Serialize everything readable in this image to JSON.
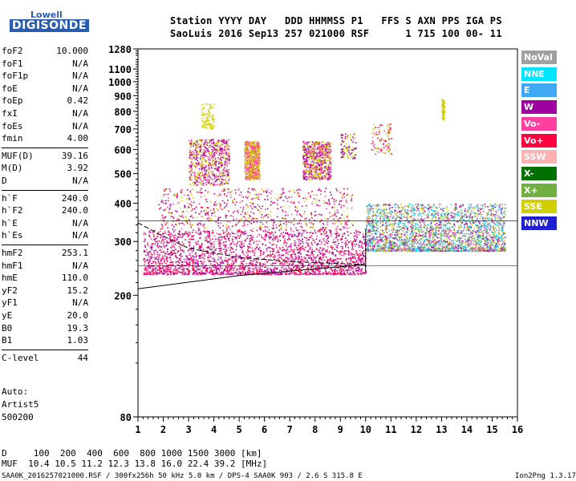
{
  "logo": {
    "brand": "Lowell",
    "name": "DIGISONDE"
  },
  "header": {
    "line1": "Station YYYY DAY   DDD HHMMSS P1   FFS S AXN PPS IGA PS",
    "line2": "SaoLuis 2016 Sep13 257 021000 RSF      1 715 100 00- 11"
  },
  "params": [
    {
      "name": "foF2",
      "value": "10.000"
    },
    {
      "name": "foF1",
      "value": "N/A"
    },
    {
      "name": "foF1p",
      "value": "N/A"
    },
    {
      "name": "foE",
      "value": "N/A"
    },
    {
      "name": "foEp",
      "value": "0.42"
    },
    {
      "name": "fxI",
      "value": "N/A"
    },
    {
      "name": "foEs",
      "value": "N/A"
    },
    {
      "name": "fmin",
      "value": "4.00"
    },
    {
      "name": "MUF(D)",
      "value": "39.16"
    },
    {
      "name": "M(D)",
      "value": "3.92"
    },
    {
      "name": "D",
      "value": "N/A"
    },
    {
      "name": "h`F",
      "value": "240.0"
    },
    {
      "name": "h`F2",
      "value": "240.0"
    },
    {
      "name": "h`E",
      "value": "N/A"
    },
    {
      "name": "h`Es",
      "value": "N/A"
    },
    {
      "name": "hmF2",
      "value": "253.1"
    },
    {
      "name": "hmF1",
      "value": "N/A"
    },
    {
      "name": "hmE",
      "value": "110.0"
    },
    {
      "name": "yF2",
      "value": "15.2"
    },
    {
      "name": "yF1",
      "value": "N/A"
    },
    {
      "name": "yE",
      "value": "20.0"
    },
    {
      "name": "B0",
      "value": "19.3"
    },
    {
      "name": "B1",
      "value": "1.03"
    },
    {
      "name": "C-level",
      "value": "44"
    }
  ],
  "auto": {
    "line1": "Auto:",
    "line2": "Artist5",
    "line3": "500200"
  },
  "legend": [
    {
      "label": "NoVal",
      "color": "#a0a0a0"
    },
    {
      "label": "NNE",
      "color": "#00e5ff"
    },
    {
      "label": "E",
      "color": "#3fa9f5"
    },
    {
      "label": "W",
      "color": "#a000a0"
    },
    {
      "label": "Vo-",
      "color": "#ff40a0"
    },
    {
      "label": "Vo+",
      "color": "#ff0040"
    },
    {
      "label": "SSW",
      "color": "#ffb0b0"
    },
    {
      "label": "X-",
      "color": "#007000"
    },
    {
      "label": "X+",
      "color": "#70b040"
    },
    {
      "label": "SSE",
      "color": "#d0d000"
    },
    {
      "label": "NNW",
      "color": "#2020d0"
    }
  ],
  "footer": {
    "distances": "D     100  200  400  600  800 1000 1500 3000 [km]",
    "muf": "MUF  10.4 10.5 11.2 12.3 13.8 16.0 22.4 39.2 [MHz]",
    "file_info": "SAA0K_2016257021000.RSF / 300fx256h 50 kHz 5.0 km / DPS-4 SAA0K 903 / 2.6 S 315.8 E",
    "version": "Ion2Png 1.3.17"
  },
  "chart_data": {
    "type": "scatter",
    "xlabel": "",
    "ylabel": "",
    "xlim": [
      1,
      16
    ],
    "ylim": [
      80,
      1280
    ],
    "y_scale": "log",
    "x_ticks": [
      1,
      2,
      3,
      4,
      5,
      6,
      7,
      8,
      9,
      10,
      11,
      12,
      13,
      14,
      15,
      16
    ],
    "y_ticks": [
      80,
      200,
      300,
      400,
      500,
      600,
      700,
      800,
      900,
      1000,
      1100,
      1280
    ],
    "grid": false,
    "horizontal_lines": [
      250,
      350
    ],
    "vertical_line": 10.0,
    "legend_position": "right",
    "trace_lines": [
      {
        "points": [
          [
            1,
            210
          ],
          [
            5,
            232
          ],
          [
            10,
            252
          ]
        ]
      },
      {
        "points": [
          [
            1,
            345
          ],
          [
            1.8,
            318
          ],
          [
            3,
            285
          ],
          [
            5,
            266
          ],
          [
            7,
            258
          ],
          [
            9,
            254
          ],
          [
            10,
            252
          ]
        ]
      }
    ],
    "echo_clusters": [
      {
        "x_range": [
          1.2,
          10.0
        ],
        "y_range": [
          235,
          330
        ],
        "density": "high",
        "colors": [
          "Vo+",
          "Vo-",
          "W"
        ]
      },
      {
        "x_range": [
          10.0,
          15.5
        ],
        "y_range": [
          280,
          400
        ],
        "density": "high",
        "colors": [
          "NNE",
          "E",
          "W",
          "Vo-",
          "SSE",
          "X+",
          "NoVal"
        ]
      },
      {
        "x_range": [
          1.8,
          9.5
        ],
        "y_range": [
          330,
          450
        ],
        "density": "medium",
        "colors": [
          "Vo+",
          "W",
          "SSE",
          "Vo-"
        ]
      },
      {
        "x_range": [
          3.0,
          4.6
        ],
        "y_range": [
          460,
          650
        ],
        "density": "medium",
        "colors": [
          "W",
          "Vo-",
          "SSE"
        ]
      },
      {
        "x_range": [
          5.2,
          5.8
        ],
        "y_range": [
          480,
          640
        ],
        "density": "medium",
        "colors": [
          "SSE",
          "Vo-"
        ]
      },
      {
        "x_range": [
          7.5,
          8.6
        ],
        "y_range": [
          480,
          640
        ],
        "density": "medium",
        "colors": [
          "W",
          "Vo-",
          "SSE"
        ]
      },
      {
        "x_range": [
          9.0,
          9.6
        ],
        "y_range": [
          560,
          680
        ],
        "density": "low",
        "colors": [
          "SSE",
          "W"
        ]
      },
      {
        "x_range": [
          10.2,
          11.0
        ],
        "y_range": [
          580,
          730
        ],
        "density": "low",
        "colors": [
          "Vo+",
          "Vo-",
          "SSE"
        ]
      },
      {
        "x_range": [
          3.5,
          4.0
        ],
        "y_range": [
          700,
          850
        ],
        "density": "low",
        "colors": [
          "SSE"
        ]
      },
      {
        "x_range": [
          13.0,
          13.1
        ],
        "y_range": [
          750,
          880
        ],
        "density": "low",
        "colors": [
          "SSE"
        ]
      }
    ]
  }
}
